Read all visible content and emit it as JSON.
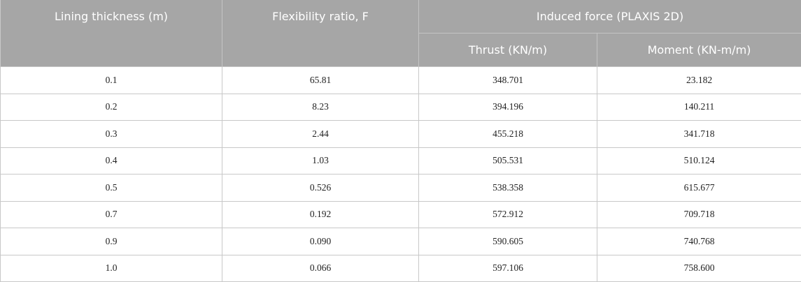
{
  "table": {
    "header": {
      "columns": [
        "Lining thickness (m)",
        "Flexibility ratio, F"
      ],
      "group": "Induced force (PLAXIS 2D)",
      "subcolumns": [
        "Thrust (KN/m)",
        "Moment (KN-m/m)"
      ]
    },
    "rows": [
      [
        "0.1",
        "65.81",
        "348.701",
        "23.182"
      ],
      [
        "0.2",
        "8.23",
        "394.196",
        "140.211"
      ],
      [
        "0.3",
        "2.44",
        "455.218",
        "341.718"
      ],
      [
        "0.4",
        "1.03",
        "505.531",
        "510.124"
      ],
      [
        "0.5",
        "0.526",
        "538.358",
        "615.677"
      ],
      [
        "0.7",
        "0.192",
        "572.912",
        "709.718"
      ],
      [
        "0.9",
        "0.090",
        "590.605",
        "740.768"
      ],
      [
        "1.0",
        "0.066",
        "597.106",
        "758.600"
      ]
    ]
  }
}
